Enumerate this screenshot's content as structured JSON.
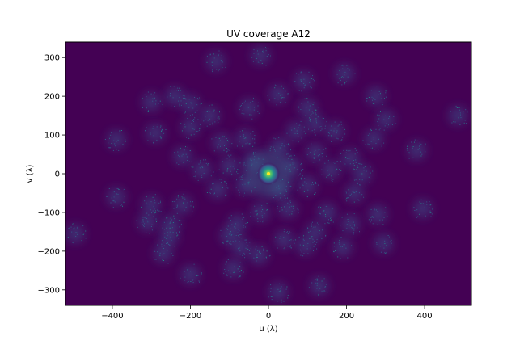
{
  "chart_data": {
    "type": "heatmap",
    "title": "UV coverage A12",
    "xlabel": "u (λ)",
    "ylabel": "v (λ)",
    "xlim": [
      -520,
      520
    ],
    "ylim": [
      -340,
      340
    ],
    "xticks": [
      -400,
      -200,
      0,
      200,
      400
    ],
    "yticks": [
      -300,
      -200,
      -100,
      0,
      100,
      200,
      300
    ],
    "xtick_labels": [
      "−400",
      "−200",
      "0",
      "200",
      "400"
    ],
    "ytick_labels": [
      "−300",
      "−200",
      "−100",
      "0",
      "100",
      "200",
      "300"
    ],
    "colormap": "viridis",
    "background_color": "#440154",
    "center_peak": {
      "u": 0,
      "v": 0
    },
    "clusters": [
      {
        "u": -20,
        "v": 305
      },
      {
        "u": -135,
        "v": 290
      },
      {
        "u": 195,
        "v": 258
      },
      {
        "u": 90,
        "v": 240
      },
      {
        "u": 25,
        "v": 205
      },
      {
        "u": 275,
        "v": 200
      },
      {
        "u": -300,
        "v": 185
      },
      {
        "u": -200,
        "v": 180
      },
      {
        "u": 485,
        "v": 150
      },
      {
        "u": 300,
        "v": 140
      },
      {
        "u": -150,
        "v": 150
      },
      {
        "u": 120,
        "v": 130
      },
      {
        "u": -50,
        "v": 170
      },
      {
        "u": -290,
        "v": 105
      },
      {
        "u": -200,
        "v": 120
      },
      {
        "u": 70,
        "v": 110
      },
      {
        "u": 170,
        "v": 110
      },
      {
        "u": 270,
        "v": 90
      },
      {
        "u": -390,
        "v": 88
      },
      {
        "u": -120,
        "v": 80
      },
      {
        "u": -60,
        "v": 90
      },
      {
        "u": 30,
        "v": 70
      },
      {
        "u": 120,
        "v": 55
      },
      {
        "u": 380,
        "v": 60
      },
      {
        "u": 210,
        "v": 40
      },
      {
        "u": -220,
        "v": 45
      },
      {
        "u": -170,
        "v": 10
      },
      {
        "u": -100,
        "v": 20
      },
      {
        "u": -40,
        "v": 30
      },
      {
        "u": 60,
        "v": 20
      },
      {
        "u": 160,
        "v": 10
      },
      {
        "u": 240,
        "v": 0
      },
      {
        "u": -130,
        "v": -40
      },
      {
        "u": -60,
        "v": -30
      },
      {
        "u": 30,
        "v": -40
      },
      {
        "u": 100,
        "v": -30
      },
      {
        "u": 220,
        "v": -50
      },
      {
        "u": -390,
        "v": -60
      },
      {
        "u": -220,
        "v": -80
      },
      {
        "u": 50,
        "v": -90
      },
      {
        "u": 150,
        "v": -100
      },
      {
        "u": 280,
        "v": -105
      },
      {
        "u": 395,
        "v": -90
      },
      {
        "u": -300,
        "v": -80
      },
      {
        "u": -310,
        "v": -125
      },
      {
        "u": -250,
        "v": -130
      },
      {
        "u": -80,
        "v": -130
      },
      {
        "u": -20,
        "v": -100
      },
      {
        "u": 120,
        "v": -150
      },
      {
        "u": 210,
        "v": -130
      },
      {
        "u": -495,
        "v": -155
      },
      {
        "u": -255,
        "v": -165
      },
      {
        "u": -100,
        "v": -160
      },
      {
        "u": 40,
        "v": -170
      },
      {
        "u": 95,
        "v": -185
      },
      {
        "u": -270,
        "v": -205
      },
      {
        "u": -70,
        "v": -190
      },
      {
        "u": 190,
        "v": -190
      },
      {
        "u": 295,
        "v": -180
      },
      {
        "u": -25,
        "v": -210
      },
      {
        "u": -90,
        "v": -245
      },
      {
        "u": -200,
        "v": -260
      },
      {
        "u": 25,
        "v": -305
      },
      {
        "u": 130,
        "v": -290
      },
      {
        "u": 100,
        "v": 170
      },
      {
        "u": -240,
        "v": 200
      }
    ]
  }
}
